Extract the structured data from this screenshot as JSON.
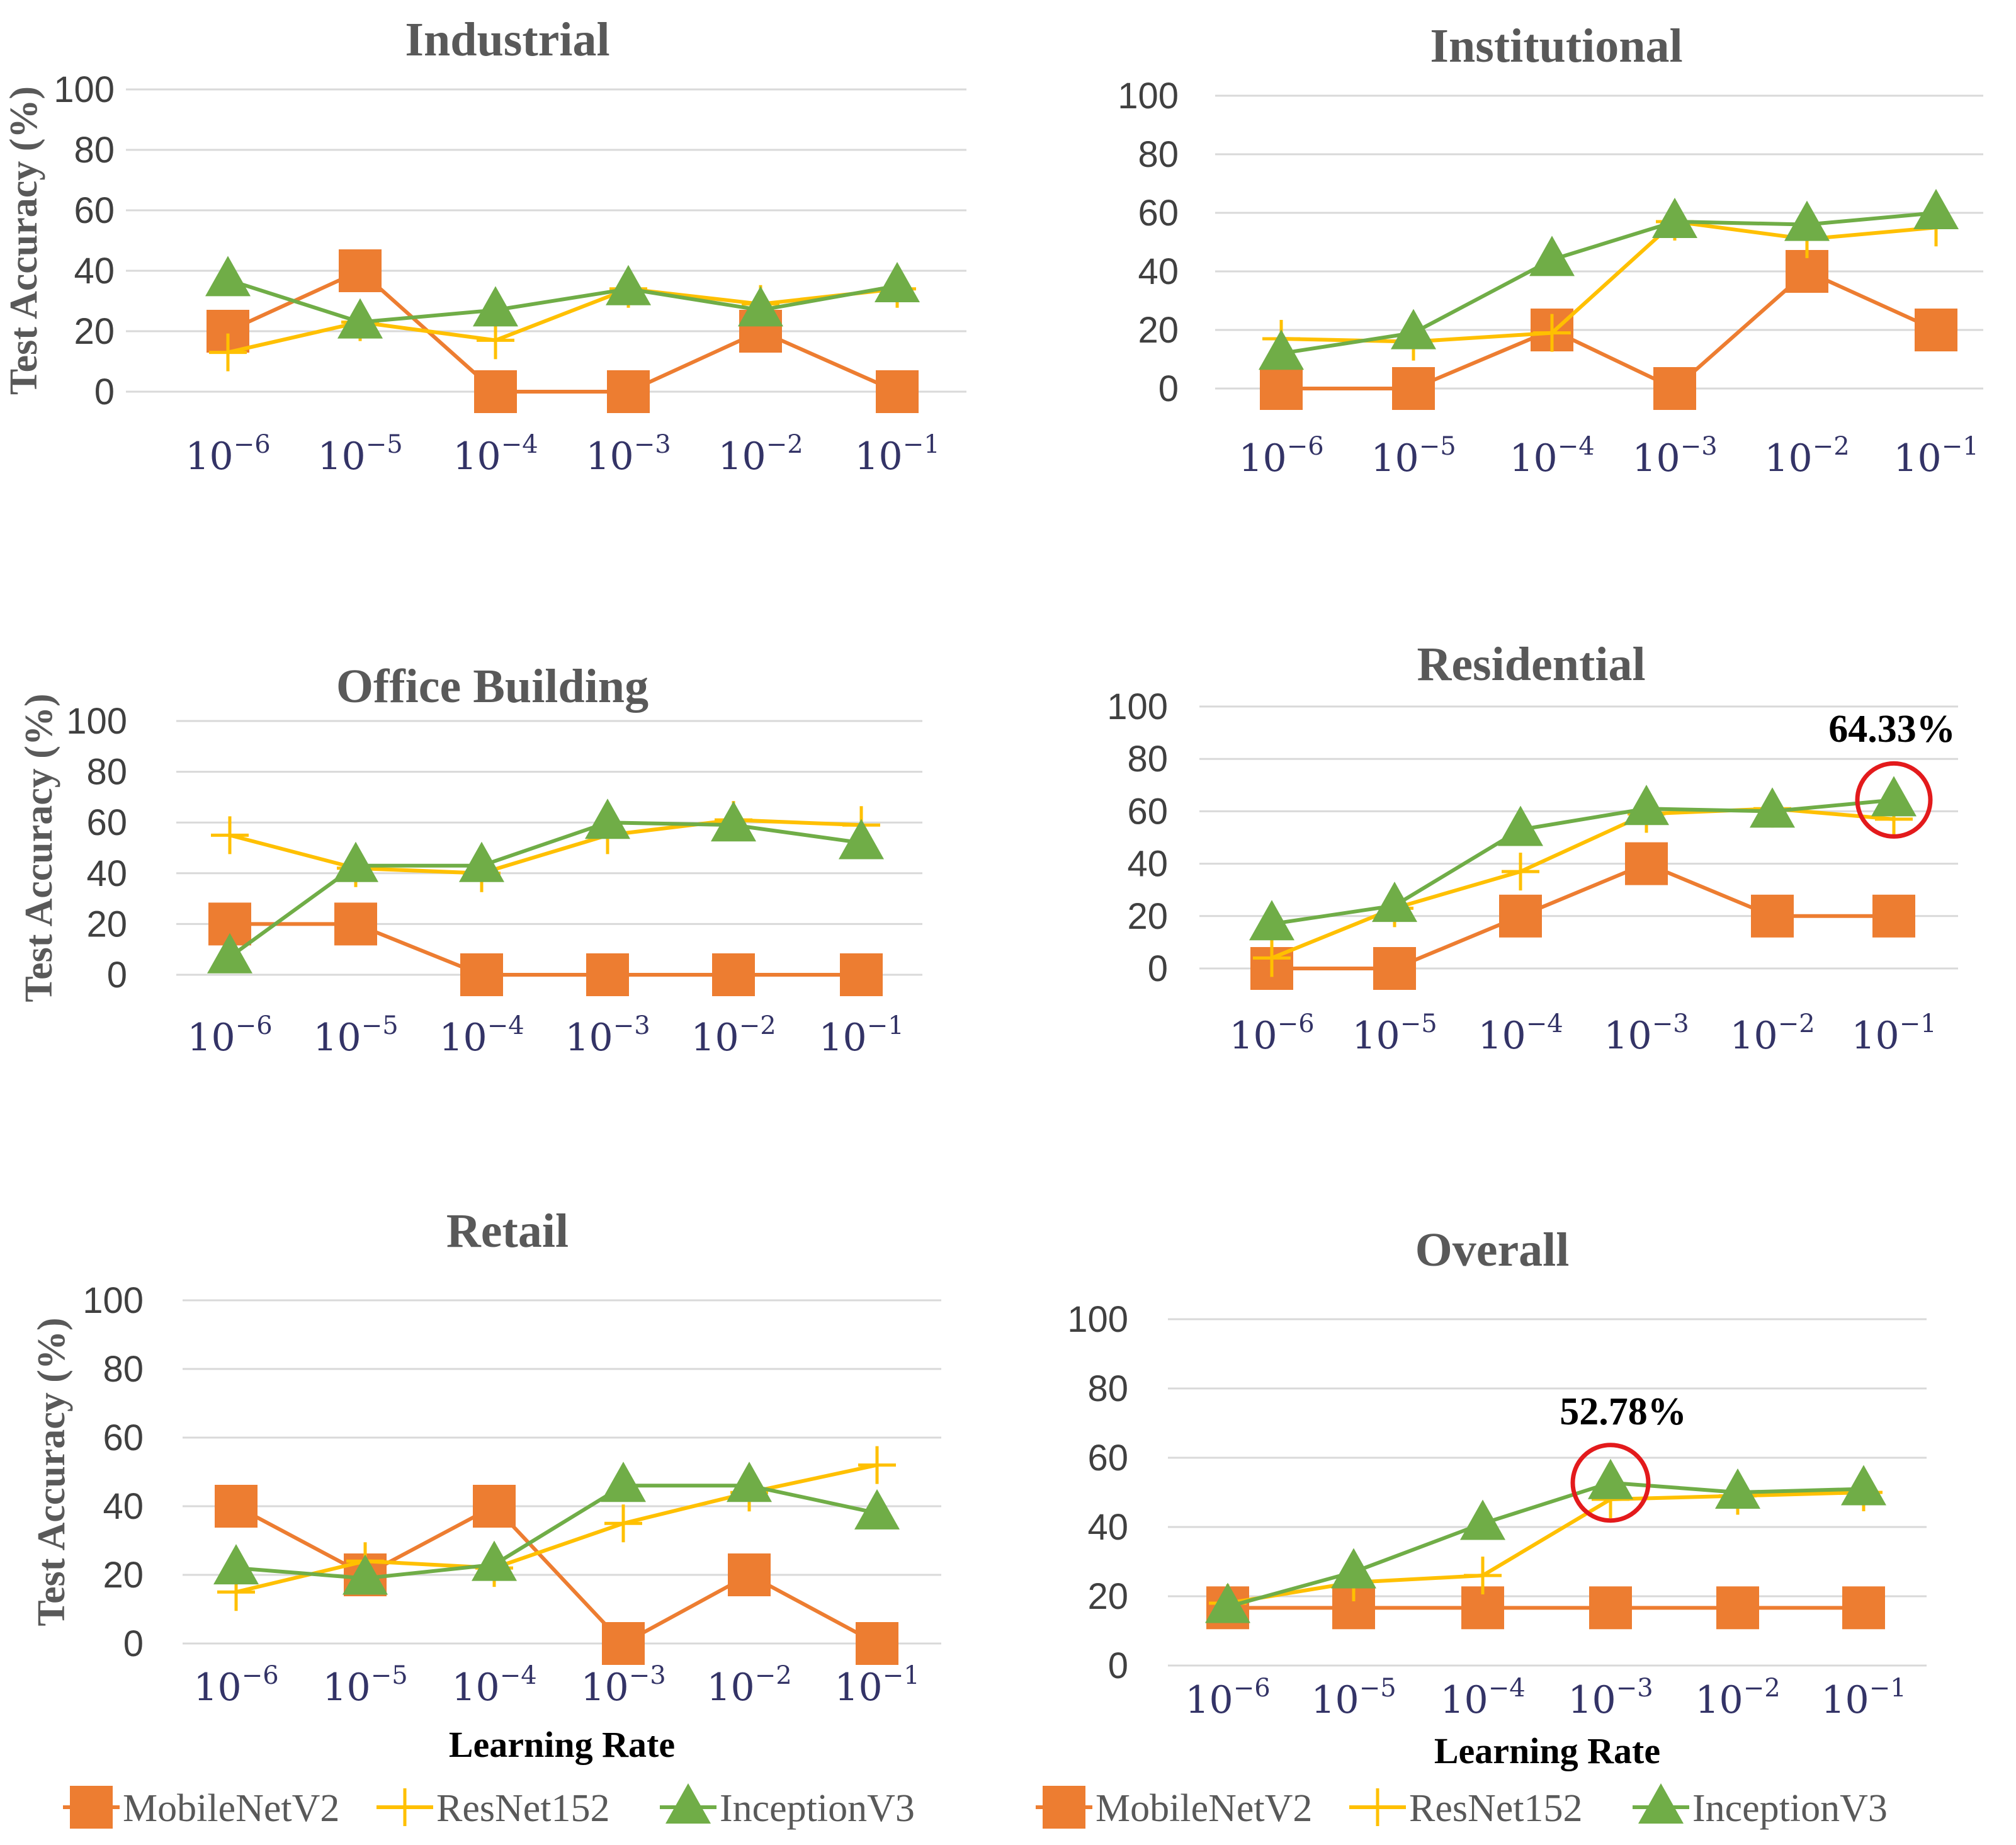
{
  "legend": {
    "series": [
      "MobileNetV2",
      "ResNet152",
      "InceptionV3"
    ]
  },
  "colors": {
    "MobileNetV2": "#ED7D31",
    "ResNet152": "#FFC000",
    "InceptionV3": "#70AD47",
    "grid": "#D9D9D9",
    "highlight": "#E31A1C"
  },
  "chart_data": [
    {
      "type": "line",
      "title": "Industrial",
      "xlabel": "",
      "ylabel": "Test Accuracy (%)",
      "categories": [
        "10^-6",
        "10^-5",
        "10^-4",
        "10^-3",
        "10^-2",
        "10^-1"
      ],
      "ylim": [
        0,
        100
      ],
      "yticks": [
        0,
        20,
        40,
        60,
        80,
        100
      ],
      "series": [
        {
          "name": "MobileNetV2",
          "values": [
            20,
            40,
            0,
            0,
            20,
            0
          ]
        },
        {
          "name": "ResNet152",
          "values": [
            13,
            23,
            17,
            34,
            29,
            34
          ]
        },
        {
          "name": "InceptionV3",
          "values": [
            37,
            23,
            27,
            34,
            27,
            35
          ]
        }
      ]
    },
    {
      "type": "line",
      "title": "Institutional",
      "xlabel": "",
      "ylabel": "",
      "categories": [
        "10^-6",
        "10^-5",
        "10^-4",
        "10^-3",
        "10^-2",
        "10^-1"
      ],
      "ylim": [
        0,
        100
      ],
      "yticks": [
        0,
        20,
        40,
        60,
        80,
        100
      ],
      "series": [
        {
          "name": "MobileNetV2",
          "values": [
            0,
            0,
            20,
            0,
            40,
            20
          ]
        },
        {
          "name": "ResNet152",
          "values": [
            17,
            16,
            19,
            57,
            51,
            55
          ]
        },
        {
          "name": "InceptionV3",
          "values": [
            12,
            19,
            44,
            57,
            56,
            60
          ]
        }
      ]
    },
    {
      "type": "line",
      "title": "Office Building",
      "xlabel": "",
      "ylabel": "Test Accuracy (%)",
      "categories": [
        "10^-6",
        "10^-5",
        "10^-4",
        "10^-3",
        "10^-2",
        "10^-1"
      ],
      "ylim": [
        0,
        100
      ],
      "yticks": [
        0,
        20,
        40,
        60,
        80,
        100
      ],
      "series": [
        {
          "name": "MobileNetV2",
          "values": [
            20,
            20,
            0,
            0,
            0,
            0
          ]
        },
        {
          "name": "ResNet152",
          "values": [
            55,
            42,
            40,
            55,
            61,
            59
          ]
        },
        {
          "name": "InceptionV3",
          "values": [
            7,
            43,
            43,
            60,
            59,
            52
          ]
        }
      ]
    },
    {
      "type": "line",
      "title": "Residential",
      "xlabel": "",
      "ylabel": "",
      "categories": [
        "10^-6",
        "10^-5",
        "10^-4",
        "10^-3",
        "10^-2",
        "10^-1"
      ],
      "ylim": [
        0,
        100
      ],
      "yticks": [
        0,
        20,
        40,
        60,
        80,
        100
      ],
      "series": [
        {
          "name": "MobileNetV2",
          "values": [
            0,
            0,
            20,
            40,
            20,
            20
          ]
        },
        {
          "name": "ResNet152",
          "values": [
            4,
            23,
            37,
            59,
            61,
            57
          ]
        },
        {
          "name": "InceptionV3",
          "values": [
            17,
            24,
            53,
            61,
            60,
            64.33
          ]
        }
      ],
      "annotation": {
        "text": "64.33%",
        "series": "InceptionV3",
        "index": 5
      }
    },
    {
      "type": "line",
      "title": "Retail",
      "xlabel": "Learning Rate",
      "ylabel": "Test Accuracy (%)",
      "categories": [
        "10^-6",
        "10^-5",
        "10^-4",
        "10^-3",
        "10^-2",
        "10^-1"
      ],
      "ylim": [
        0,
        100
      ],
      "yticks": [
        0,
        20,
        40,
        60,
        80,
        100
      ],
      "series": [
        {
          "name": "MobileNetV2",
          "values": [
            40,
            20,
            40,
            0,
            20,
            0
          ]
        },
        {
          "name": "ResNet152",
          "values": [
            15,
            24,
            22,
            35,
            44,
            52
          ]
        },
        {
          "name": "InceptionV3",
          "values": [
            22,
            19,
            23,
            46,
            46,
            38
          ]
        }
      ]
    },
    {
      "type": "line",
      "title": "Overall",
      "xlabel": "Learning Rate",
      "ylabel": "",
      "categories": [
        "10^-6",
        "10^-5",
        "10^-4",
        "10^-3",
        "10^-2",
        "10^-1"
      ],
      "ylim": [
        0,
        100
      ],
      "yticks": [
        0,
        20,
        40,
        60,
        80,
        100
      ],
      "series": [
        {
          "name": "MobileNetV2",
          "values": [
            16.67,
            16.67,
            16.67,
            16.67,
            16.67,
            16.67
          ]
        },
        {
          "name": "ResNet152",
          "values": [
            18,
            24,
            26,
            48,
            49,
            50
          ]
        },
        {
          "name": "InceptionV3",
          "values": [
            17,
            27,
            41,
            52.78,
            50,
            51
          ]
        }
      ],
      "annotation": {
        "text": "52.78%",
        "series": "InceptionV3",
        "index": 3
      }
    }
  ]
}
